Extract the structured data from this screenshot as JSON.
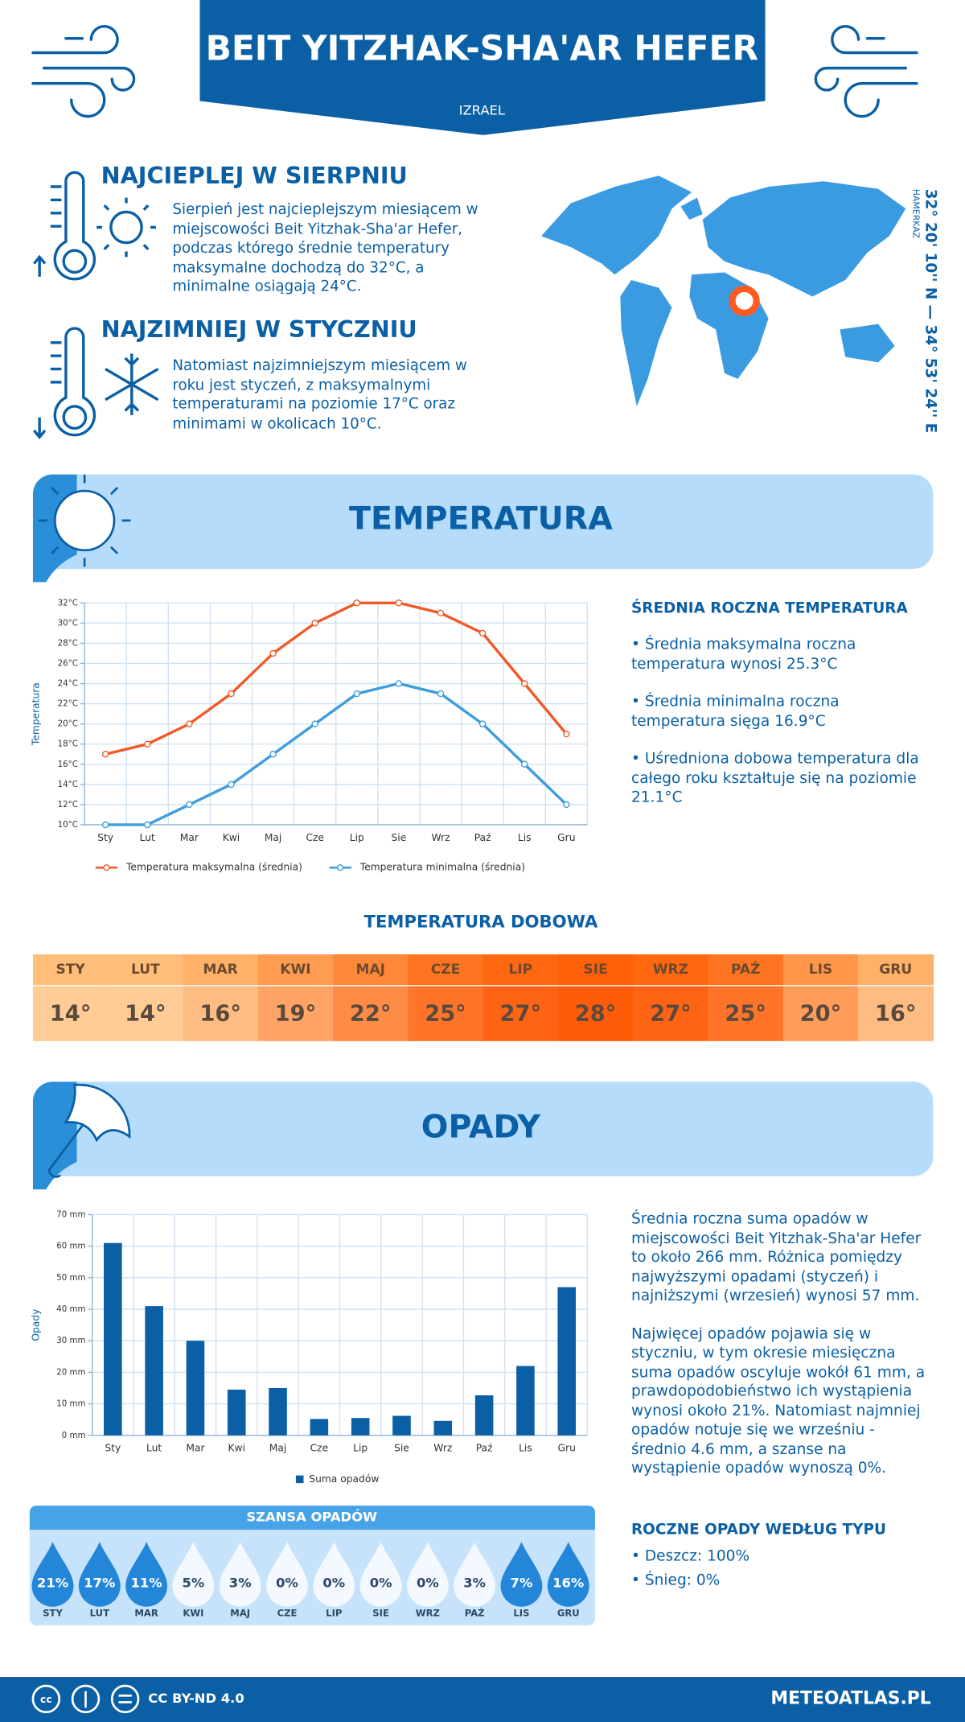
{
  "header": {
    "title": "BEIT YITZHAK-SHA'AR HEFER",
    "country": "IZRAEL"
  },
  "hottest": {
    "title": "NAJCIEPLEJ W SIERPNIU",
    "text": "Sierpień jest najcieplejszym miesiącem w miejscowości Beit Yitzhak-Sha'ar Hefer, podczas którego średnie temperatury maksymalne dochodzą do 32°C, a minimalne osiągają 24°C."
  },
  "coldest": {
    "title": "NAJZIMNIEJ W STYCZNIU",
    "text": "Natomiast najzimniejszym miesiącem w roku jest styczeń, z maksymalnymi temperaturami na poziomie 17°C oraz minimami w okolicach 10°C."
  },
  "location": {
    "coordinates": "32° 20' 10'' N — 34° 53' 24'' E",
    "region": "HAMERKAZ"
  },
  "temperature": {
    "title": "TEMPERATURA",
    "summary_title": "ŚREDNIA ROCZNA TEMPERATURA",
    "summary": [
      "• Średnia maksymalna roczna temperatura wynosi 25.3°C",
      "• Średnia minimalna roczna temperatura sięga 16.9°C",
      "• Uśredniona dobowa temperatura dla całego roku kształtuje się na poziomie 21.1°C"
    ],
    "daily_title": "TEMPERATURA DOBOWA",
    "daily": {
      "months": [
        "STY",
        "LUT",
        "MAR",
        "KWI",
        "MAJ",
        "CZE",
        "LIP",
        "SIE",
        "WRZ",
        "PAŹ",
        "LIS",
        "GRU"
      ],
      "values": [
        14,
        14,
        16,
        19,
        22,
        25,
        27,
        28,
        27,
        25,
        20,
        16
      ],
      "value_labels": [
        "14°",
        "14°",
        "16°",
        "19°",
        "22°",
        "25°",
        "27°",
        "28°",
        "27°",
        "25°",
        "20°",
        "16°"
      ]
    }
  },
  "precipitation": {
    "title": "OPADY",
    "text": [
      "Średnia roczna suma opadów w miejscowości Beit Yitzhak-Sha'ar Hefer to około 266 mm. Różnica pomiędzy najwyższymi opadami (styczeń) i najniższymi (wrzesień) wynosi 57 mm.",
      "Najwięcej opadów pojawia się w styczniu, w tym okresie miesięczna suma opadów oscyluje wokół 61 mm, a prawdopodobieństwo ich wystąpienia wynosi około 21%. Natomiast najmniej opadów notuje się we wrześniu - średnio 4.6 mm, a szanse na wystąpienie opadów wynoszą 0%."
    ],
    "chance": {
      "title": "SZANSA OPADÓW",
      "months": [
        "STY",
        "LUT",
        "MAR",
        "KWI",
        "MAJ",
        "CZE",
        "LIP",
        "SIE",
        "WRZ",
        "PAŹ",
        "LIS",
        "GRU"
      ],
      "values": [
        21,
        17,
        11,
        5,
        3,
        0,
        0,
        0,
        0,
        3,
        7,
        16
      ],
      "value_labels": [
        "21%",
        "17%",
        "11%",
        "5%",
        "3%",
        "0%",
        "0%",
        "0%",
        "0%",
        "3%",
        "7%",
        "16%"
      ]
    },
    "types_title": "ROCZNE OPADY WEDŁUG TYPU",
    "types": [
      "• Deszcz: 100%",
      "• Śnieg: 0%"
    ]
  },
  "footer": {
    "license": "CC BY-ND 4.0",
    "site": "METEOATLAS.PL"
  },
  "chart_data": [
    {
      "type": "line",
      "y_label": "Temperatura",
      "categories": [
        "Sty",
        "Lut",
        "Mar",
        "Kwi",
        "Maj",
        "Cze",
        "Lip",
        "Sie",
        "Wrz",
        "Paź",
        "Lis",
        "Gru"
      ],
      "series": [
        {
          "name": "Temperatura maksymalna (średnia)",
          "color": "#f05a28",
          "values": [
            17,
            18,
            20,
            23,
            27,
            30,
            32,
            32,
            31,
            29,
            24,
            19
          ]
        },
        {
          "name": "Temperatura minimalna (średnia)",
          "color": "#3e9ddb",
          "values": [
            10,
            10,
            12,
            14,
            17,
            20,
            23,
            24,
            23,
            20,
            16,
            12
          ]
        }
      ],
      "ylim": [
        10,
        32
      ],
      "yticks": [
        {
          "value": 10,
          "label": "10°C"
        },
        {
          "value": 12,
          "label": "12°C"
        },
        {
          "value": 14,
          "label": "14°C"
        },
        {
          "value": 16,
          "label": "16°C"
        },
        {
          "value": 18,
          "label": "18°C"
        },
        {
          "value": 20,
          "label": "20°C"
        },
        {
          "value": 22,
          "label": "22°C"
        },
        {
          "value": 24,
          "label": "24°C"
        },
        {
          "value": 26,
          "label": "26°C"
        },
        {
          "value": 28,
          "label": "28°C"
        },
        {
          "value": 30,
          "label": "30°C"
        },
        {
          "value": 32,
          "label": "32°C"
        }
      ],
      "grid": true
    },
    {
      "type": "bar",
      "y_label": "Opady",
      "categories": [
        "Sty",
        "Lut",
        "Mar",
        "Kwi",
        "Maj",
        "Cze",
        "Lip",
        "Sie",
        "Wrz",
        "Paź",
        "Lis",
        "Gru"
      ],
      "series": [
        {
          "name": "Suma opadów",
          "color": "#0b5fa5",
          "values": [
            61,
            41,
            30,
            14.5,
            15,
            5.2,
            5.5,
            6.2,
            4.6,
            12.7,
            22,
            47
          ]
        }
      ],
      "ylim": [
        0,
        70
      ],
      "yticks": [
        {
          "value": 0,
          "label": "0 mm"
        },
        {
          "value": 10,
          "label": "10 mm"
        },
        {
          "value": 20,
          "label": "20 mm"
        },
        {
          "value": 30,
          "label": "30 mm"
        },
        {
          "value": 40,
          "label": "40 mm"
        },
        {
          "value": 50,
          "label": "50 mm"
        },
        {
          "value": 60,
          "label": "60 mm"
        },
        {
          "value": 70,
          "label": "70 mm"
        }
      ],
      "grid": true
    }
  ]
}
